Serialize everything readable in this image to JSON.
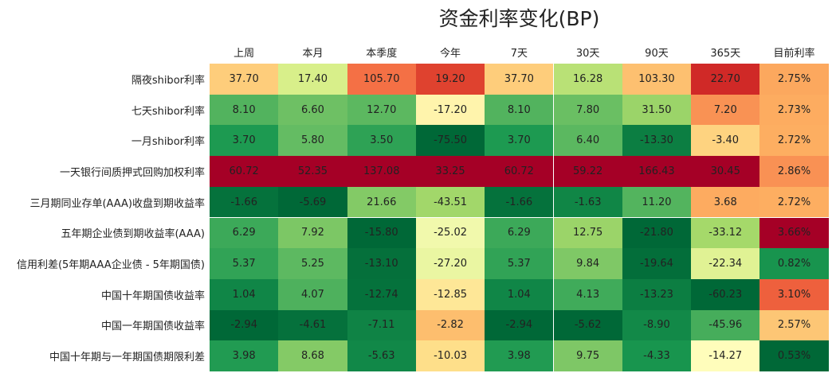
{
  "title": "资金利率变化(BP)",
  "table": {
    "columns": [
      "上周",
      "本月",
      "本季度",
      "今年",
      "7天",
      "30天",
      "90天",
      "365天",
      "目前利率"
    ],
    "rows": [
      {
        "label": "隔夜shibor利率",
        "cells": [
          "37.70",
          "17.40",
          "105.70",
          "19.20",
          "37.70",
          "16.28",
          "103.30",
          "22.70",
          "2.75%"
        ]
      },
      {
        "label": "七天shibor利率",
        "cells": [
          "8.10",
          "6.60",
          "12.70",
          "-17.20",
          "8.10",
          "7.80",
          "31.50",
          "7.20",
          "2.73%"
        ]
      },
      {
        "label": "一月shibor利率",
        "cells": [
          "3.70",
          "5.80",
          "3.50",
          "-75.50",
          "3.70",
          "6.40",
          "-13.30",
          "-3.40",
          "2.72%"
        ]
      },
      {
        "label": "一天银行间质押式回购加权利率",
        "cells": [
          "60.72",
          "52.35",
          "137.08",
          "33.25",
          "60.72",
          "59.22",
          "166.43",
          "30.45",
          "2.86%"
        ]
      },
      {
        "label": "三月期同业存单(AAA)收盘到期收益率",
        "cells": [
          "-1.66",
          "-5.69",
          "21.66",
          "-43.51",
          "-1.66",
          "-1.63",
          "11.20",
          "3.68",
          "2.72%"
        ]
      },
      {
        "label": "五年期企业债到期收益率(AAA)",
        "cells": [
          "6.29",
          "7.92",
          "-15.80",
          "-25.02",
          "6.29",
          "12.75",
          "-21.80",
          "-33.12",
          "3.66%"
        ]
      },
      {
        "label": "信用利差(5年期AAA企业债 - 5年期国债)",
        "cells": [
          "5.37",
          "5.25",
          "-13.10",
          "-27.20",
          "5.37",
          "9.84",
          "-19.64",
          "-22.34",
          "0.82%"
        ]
      },
      {
        "label": "中国十年期国债收益率",
        "cells": [
          "1.04",
          "4.07",
          "-12.74",
          "-12.85",
          "1.04",
          "4.13",
          "-13.23",
          "-60.23",
          "3.10%"
        ]
      },
      {
        "label": "中国一年期国债收益率",
        "cells": [
          "-2.94",
          "-4.61",
          "-7.11",
          "-2.82",
          "-2.94",
          "-5.62",
          "-8.90",
          "-45.96",
          "2.57%"
        ]
      },
      {
        "label": "中国十年期与一年期国债期限利差",
        "cells": [
          "3.98",
          "8.68",
          "-5.63",
          "-10.03",
          "3.98",
          "9.75",
          "-4.33",
          "-14.27",
          "0.53%"
        ]
      }
    ]
  }
}
